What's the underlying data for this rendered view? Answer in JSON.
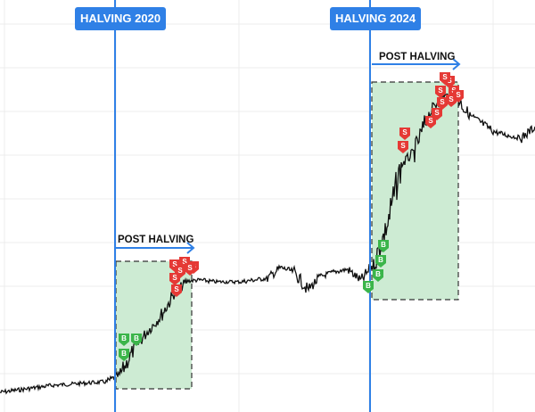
{
  "chart_data": {
    "type": "line",
    "title": "",
    "xlabel": "",
    "ylabel": "",
    "grid": true,
    "legend": "none",
    "values": [
      22,
      24,
      26,
      28,
      30,
      31,
      32,
      33,
      34,
      42,
      70,
      90,
      107,
      132,
      147,
      148,
      146,
      146,
      146,
      148,
      150,
      162,
      157,
      137,
      152,
      157,
      160,
      147,
      167,
      212,
      277,
      292,
      332,
      354,
      357,
      334,
      324,
      314,
      310,
      307,
      320
    ],
    "annotations": {
      "halvings": [
        {
          "label": "HALVING 2020",
          "post_label": "POST HALVING"
        },
        {
          "label": "HALVING 2024",
          "post_label": "POST HALVING"
        }
      ],
      "buy_marker_text": "B",
      "sell_marker_text": "S"
    },
    "colors": {
      "halving_line": "#2f80e6",
      "post_zone_fill": "#cdebd3",
      "price_line": "#111111",
      "buy_marker": "#3bb54a",
      "sell_marker": "#e53935",
      "grid": "#ececec"
    }
  }
}
